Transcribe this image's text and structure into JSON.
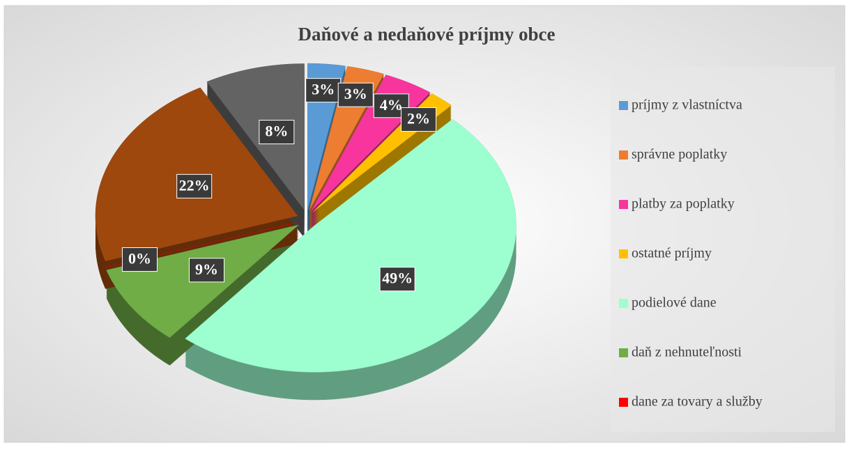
{
  "chart_data": {
    "type": "pie",
    "title": "Daňové a nedaňové príjmy obce",
    "categories": [
      "príjmy z vlastníctva",
      "správne poplatky",
      "platby za poplatky",
      "ostatné príjmy",
      "podielové dane",
      "daň z nehnuteľnosti",
      "dane za tovary a služby",
      null,
      null
    ],
    "values": [
      3,
      3,
      4,
      2,
      49,
      9,
      0,
      22,
      8
    ],
    "value_labels": [
      "3%",
      "3%",
      "4%",
      "2%",
      "49%",
      "9%",
      "0%",
      "22%",
      "8%"
    ],
    "colors": [
      "#5b9bd5",
      "#ed7d31",
      "#f7359d",
      "#ffc000",
      "#9dffd0",
      "#70ad47",
      "#ff0000",
      "#9e480e",
      "#636363"
    ],
    "legend": "right"
  }
}
